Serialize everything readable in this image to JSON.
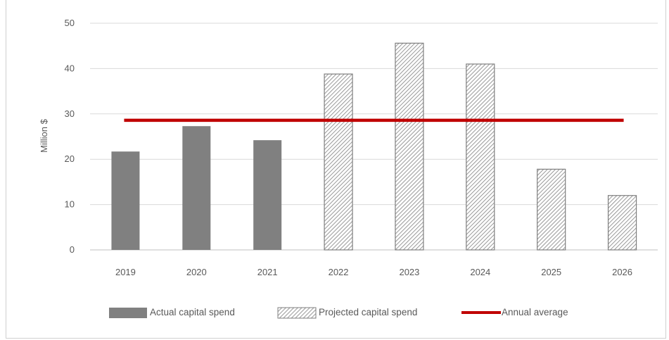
{
  "chart_data": {
    "type": "bar",
    "ylabel": "Million $",
    "ylim": [
      0,
      50
    ],
    "yticks": [
      0,
      10,
      20,
      30,
      40,
      50
    ],
    "categories": [
      "2019",
      "2020",
      "2021",
      "2022",
      "2023",
      "2024",
      "2025",
      "2026"
    ],
    "series": [
      {
        "name": "Actual capital spend",
        "values": [
          21.7,
          27.3,
          24.2,
          null,
          null,
          null,
          null,
          null
        ],
        "color": "#808080",
        "fill": "solid"
      },
      {
        "name": "Projected capital spend",
        "values": [
          null,
          null,
          null,
          38.8,
          45.6,
          41.0,
          17.8,
          12.0
        ],
        "color": "#808080",
        "fill": "hatched"
      },
      {
        "name": "Annual average",
        "type": "line",
        "value": 28.6,
        "color": "#c00000"
      }
    ],
    "grid": true,
    "legend_position": "bottom"
  }
}
